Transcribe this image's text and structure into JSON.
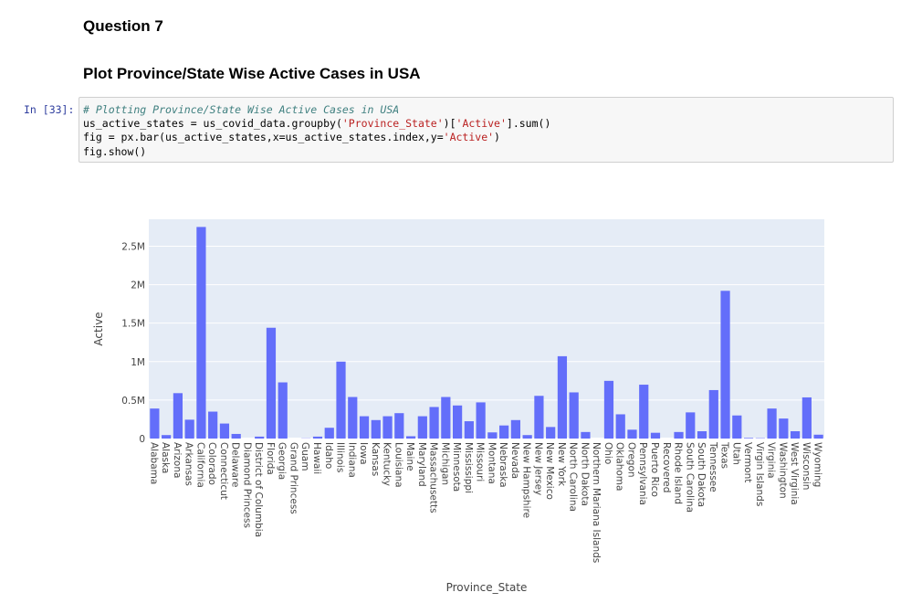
{
  "header": {
    "question": "Question 7",
    "subtitle": "Plot Province/State Wise Active Cases in USA"
  },
  "cell": {
    "prompt": "In [33]:",
    "lines": [
      "# Plotting Province/State Wise Active Cases in USA",
      "us_active_states = us_covid_data.groupby('Province_State')['Active'].sum()",
      "fig = px.bar(us_active_states,x=us_active_states.index,y='Active')",
      "fig.show()"
    ]
  },
  "chart_data": {
    "type": "bar",
    "xlabel": "Province_State",
    "ylabel": "Active",
    "ylim": [
      0,
      2850000
    ],
    "yticks": [
      0,
      500000,
      1000000,
      1500000,
      2000000,
      2500000
    ],
    "ytick_labels": [
      "0",
      "0.5M",
      "1M",
      "1.5M",
      "2M",
      "2.5M"
    ],
    "bar_color": "#636efa",
    "plot_bg": "#e5ecf6",
    "grid": true,
    "categories": [
      "Alabama",
      "Alaska",
      "Arizona",
      "Arkansas",
      "California",
      "Colorado",
      "Connecticut",
      "Delaware",
      "Diamond Princess",
      "District of Columbia",
      "Florida",
      "Georgia",
      "Grand Princess",
      "Guam",
      "Hawaii",
      "Idaho",
      "Illinois",
      "Indiana",
      "Iowa",
      "Kansas",
      "Kentucky",
      "Louisiana",
      "Maine",
      "Maryland",
      "Massachusetts",
      "Michigan",
      "Minnesota",
      "Mississippi",
      "Missouri",
      "Montana",
      "Nebraska",
      "Nevada",
      "New Hampshire",
      "New Jersey",
      "New Mexico",
      "New York",
      "North Carolina",
      "North Dakota",
      "Northern Mariana Islands",
      "Ohio",
      "Oklahoma",
      "Oregon",
      "Pennsylvania",
      "Puerto Rico",
      "Recovered",
      "Rhode Island",
      "South Carolina",
      "South Dakota",
      "Tennessee",
      "Texas",
      "Utah",
      "Vermont",
      "Virgin Islands",
      "Virginia",
      "Washington",
      "West Virginia",
      "Wisconsin",
      "Wyoming"
    ],
    "values": [
      390000,
      45000,
      590000,
      245000,
      2750000,
      350000,
      195000,
      60000,
      0,
      25000,
      1440000,
      730000,
      0,
      3000,
      25000,
      140000,
      1000000,
      540000,
      290000,
      240000,
      290000,
      330000,
      30000,
      290000,
      410000,
      540000,
      430000,
      225000,
      470000,
      80000,
      170000,
      240000,
      45000,
      555000,
      150000,
      1070000,
      600000,
      85000,
      0,
      750000,
      315000,
      115000,
      700000,
      75000,
      0,
      85000,
      340000,
      95000,
      630000,
      1920000,
      300000,
      8000,
      5000,
      390000,
      260000,
      95000,
      535000,
      50000
    ]
  }
}
